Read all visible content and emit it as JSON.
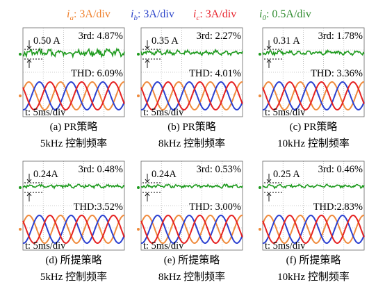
{
  "legend": {
    "items": [
      {
        "sym": "i",
        "sub": "a",
        "text": ": 3A/div",
        "color": "#ef7f2a"
      },
      {
        "sym": "i",
        "sub": "b",
        "text": ": 3A/div",
        "color": "#2a43c9"
      },
      {
        "sym": "i",
        "sub": "c",
        "text": ": 3A/div",
        "color": "#e8202a"
      },
      {
        "sym": "i",
        "sub": "0",
        "text": ": 0.5A/div",
        "color": "#2e8b2e"
      }
    ]
  },
  "colors": {
    "ia": "#ef8a3c",
    "ib": "#2a3fd0",
    "ic": "#e52121",
    "i0": "#1e9a1e",
    "grid": "#9a9a9a"
  },
  "chart_data": [
    {
      "type": "line",
      "panel": "(a)",
      "i0_peak_label": "0.50 A",
      "third": "3rd: 4.87%",
      "thd": "THD: 6.09%",
      "timebase": "t: 5ms/div",
      "caption1": "(a) PR策略",
      "caption2": "5kHz 控制频率"
    },
    {
      "type": "line",
      "panel": "(b)",
      "i0_peak_label": "0.35 A",
      "third": "3rd: 2.27%",
      "thd": "THD: 4.01%",
      "timebase": "t: 5ms/div",
      "caption1": "(b) PR策略",
      "caption2": "8kHz 控制频率"
    },
    {
      "type": "line",
      "panel": "(c)",
      "i0_peak_label": "0.31 A",
      "third": "3rd: 1.78%",
      "thd": "THD: 3.36%",
      "timebase": "t: 5ms/div",
      "caption1": "(c) PR策略",
      "caption2": "10kHz 控制频率"
    },
    {
      "type": "line",
      "panel": "(d)",
      "i0_peak_label": "0.24A",
      "third": "3rd: 0.48%",
      "thd": "THD:3.52%",
      "timebase": "t: 5ms/div",
      "caption1": "(d) 所提策略",
      "caption2": "5kHz 控制频率"
    },
    {
      "type": "line",
      "panel": "(e)",
      "i0_peak_label": "0.24A",
      "third": "3rd: 0.53%",
      "thd": "THD: 3.00%",
      "timebase": "t: 5ms/div",
      "caption1": "(e) 所提策略",
      "caption2": "8kHz 控制频率"
    },
    {
      "type": "line",
      "panel": "(f)",
      "i0_peak_label": "0.25 A",
      "third": "3rd: 0.46%",
      "thd": "THD:2.83%",
      "timebase": "t: 5ms/div",
      "caption1": "(f) 所提策略",
      "caption2": "10kHz 控制频率"
    }
  ]
}
